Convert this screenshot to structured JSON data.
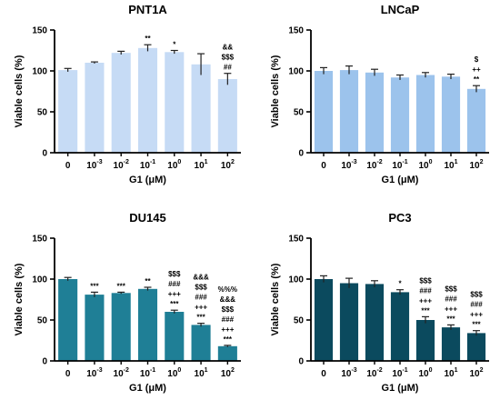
{
  "chart_data": [
    {
      "type": "bar",
      "title": "PNT1A",
      "xlabel": "G1 (μM)",
      "ylabel": "Viable cells (%)",
      "ylim": [
        0,
        150
      ],
      "yticks": [
        "0",
        "50",
        "100",
        "150"
      ],
      "categories": [
        {
          "base": "0",
          "exp": ""
        },
        {
          "base": "10",
          "exp": "-3"
        },
        {
          "base": "10",
          "exp": "-2"
        },
        {
          "base": "10",
          "exp": "-1"
        },
        {
          "base": "10",
          "exp": "0"
        },
        {
          "base": "10",
          "exp": "1"
        },
        {
          "base": "10",
          "exp": "2"
        }
      ],
      "values": [
        101,
        110,
        122,
        128,
        123,
        108,
        90
      ],
      "errors": [
        2,
        1,
        2,
        4,
        2,
        13,
        7
      ],
      "annotations": [
        [],
        [],
        [],
        [
          "**"
        ],
        [
          "*"
        ],
        [],
        [
          "&&",
          "$$$",
          "##"
        ]
      ],
      "color": "#c6dbf5"
    },
    {
      "type": "bar",
      "title": "LNCaP",
      "xlabel": "G1 (μM)",
      "ylabel": "Viable cells (%)",
      "ylim": [
        0,
        150
      ],
      "yticks": [
        "0",
        "50",
        "100",
        "150"
      ],
      "categories": [
        {
          "base": "0",
          "exp": ""
        },
        {
          "base": "10",
          "exp": "-3"
        },
        {
          "base": "10",
          "exp": "-2"
        },
        {
          "base": "10",
          "exp": "-1"
        },
        {
          "base": "10",
          "exp": "0"
        },
        {
          "base": "10",
          "exp": "1"
        },
        {
          "base": "10",
          "exp": "2"
        }
      ],
      "values": [
        100,
        101,
        98,
        92,
        95,
        93,
        78
      ],
      "errors": [
        4,
        5,
        4,
        3,
        3,
        3,
        4
      ],
      "annotations": [
        [],
        [],
        [],
        [],
        [],
        [],
        [
          "$",
          "++",
          "**"
        ]
      ],
      "color": "#9cc3ec"
    },
    {
      "type": "bar",
      "title": "DU145",
      "xlabel": "G1 (μM)",
      "ylabel": "Viable cells (%)",
      "ylim": [
        0,
        150
      ],
      "yticks": [
        "0",
        "50",
        "100",
        "150"
      ],
      "categories": [
        {
          "base": "0",
          "exp": ""
        },
        {
          "base": "10",
          "exp": "-3"
        },
        {
          "base": "10",
          "exp": "-2"
        },
        {
          "base": "10",
          "exp": "-1"
        },
        {
          "base": "10",
          "exp": "0"
        },
        {
          "base": "10",
          "exp": "1"
        },
        {
          "base": "10",
          "exp": "2"
        }
      ],
      "values": [
        100,
        81,
        83,
        88,
        60,
        44,
        18
      ],
      "errors": [
        2,
        3,
        1,
        2,
        2,
        2,
        1
      ],
      "annotations": [
        [],
        [
          "***"
        ],
        [
          "***"
        ],
        [
          "**"
        ],
        [
          "$$$",
          "###",
          "+++",
          "***"
        ],
        [
          "&&&",
          "$$$",
          "###",
          "+++",
          "***"
        ],
        [
          "%%%",
          "&&&",
          "$$$",
          "###",
          "+++",
          "***"
        ]
      ],
      "color": "#1f7f96"
    },
    {
      "type": "bar",
      "title": "PC3",
      "xlabel": "G1 (μM)",
      "ylabel": "Viable cells (%)",
      "ylim": [
        0,
        150
      ],
      "yticks": [
        "0",
        "50",
        "100",
        "150"
      ],
      "categories": [
        {
          "base": "0",
          "exp": ""
        },
        {
          "base": "10",
          "exp": "-3"
        },
        {
          "base": "10",
          "exp": "-2"
        },
        {
          "base": "10",
          "exp": "-1"
        },
        {
          "base": "10",
          "exp": "0"
        },
        {
          "base": "10",
          "exp": "1"
        },
        {
          "base": "10",
          "exp": "2"
        }
      ],
      "values": [
        100,
        95,
        94,
        84,
        50,
        41,
        34
      ],
      "errors": [
        4,
        6,
        4,
        3,
        4,
        3,
        3
      ],
      "annotations": [
        [],
        [],
        [],
        [
          "*"
        ],
        [
          "$$$",
          "###",
          "+++",
          "***"
        ],
        [
          "$$$",
          "###",
          "+++",
          "***"
        ],
        [
          "$$$",
          "###",
          "+++",
          "***"
        ]
      ],
      "color": "#0b4a5e"
    }
  ]
}
